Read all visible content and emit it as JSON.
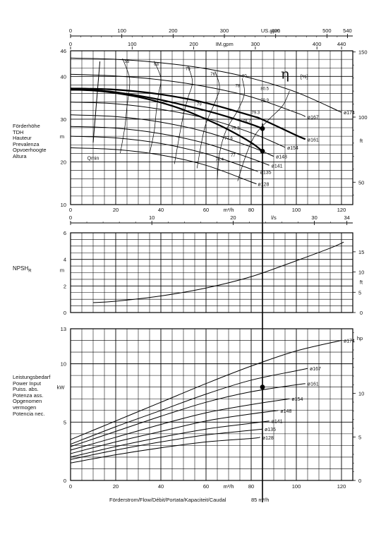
{
  "left_labels": {
    "head": [
      "Förderhöhe",
      "TDH",
      "Hauteur",
      "Prevalenza",
      "Opvoerhoogte",
      "Altura"
    ],
    "npsh": "NPSH",
    "npsh_sub": "R",
    "power": [
      "Leistungsbedarf",
      "Power Input",
      "Puiss. abs.",
      "Potenza ass.",
      "Opgenomen",
      "vermogen",
      "Potencia nec."
    ]
  },
  "footer": {
    "flow_label": "Förderstrom/Flow/Débit/Portata/Kapaciteit/Caudal",
    "duty_label": "85 m³/h"
  },
  "chart_data": {
    "type": "line",
    "flow_axis": {
      "unit": "m³/h",
      "range": [
        0,
        125
      ],
      "ticks": [
        0,
        20,
        40,
        60,
        80,
        100,
        120
      ]
    },
    "top_scales": {
      "us_gpm": {
        "unit": "US.gpm",
        "ticks": [
          0,
          100,
          200,
          300,
          400,
          500,
          540
        ]
      },
      "im_gpm": {
        "unit": "IM.gpm",
        "ticks": [
          0,
          100,
          200,
          300,
          400,
          440
        ]
      }
    },
    "ls_scale": {
      "unit": "l/s",
      "ticks": [
        0,
        10,
        20,
        30,
        34
      ]
    },
    "duty_point": {
      "flow": 85
    },
    "head_chart": {
      "y_unit": "m",
      "ylim": [
        10,
        46
      ],
      "yticks": [
        10,
        20,
        30,
        40,
        46
      ],
      "y2_unit": "ft",
      "y2ticks": [
        50,
        100,
        150
      ],
      "series": [
        {
          "name": "ø174",
          "points": [
            [
              0,
              44.3
            ],
            [
              20,
              44
            ],
            [
              40,
              43.2
            ],
            [
              60,
              41.8
            ],
            [
              80,
              39.6
            ],
            [
              100,
              36.3
            ],
            [
              120,
              31.6
            ]
          ]
        },
        {
          "name": "ø167",
          "points": [
            [
              0,
              40.5
            ],
            [
              20,
              40.1
            ],
            [
              40,
              39.2
            ],
            [
              60,
              37.6
            ],
            [
              80,
              35.2
            ],
            [
              100,
              31.5
            ],
            [
              104,
              30.6
            ]
          ]
        },
        {
          "name": "ø161",
          "points": [
            [
              0,
              37.2
            ],
            [
              20,
              36.9
            ],
            [
              40,
              35.8
            ],
            [
              60,
              33.8
            ],
            [
              80,
              30.8
            ],
            [
              85,
              29.9
            ],
            [
              100,
              26.2
            ],
            [
              104,
              25.3
            ]
          ]
        },
        {
          "name": "ø154",
          "points": [
            [
              0,
              34
            ],
            [
              20,
              33.6
            ],
            [
              40,
              32.3
            ],
            [
              60,
              30.2
            ],
            [
              80,
              26.8
            ],
            [
              95,
              23.4
            ]
          ]
        },
        {
          "name": "ø148",
          "points": [
            [
              0,
              31
            ],
            [
              20,
              30.6
            ],
            [
              40,
              29.3
            ],
            [
              60,
              27
            ],
            [
              80,
              23.5
            ],
            [
              90,
              21.3
            ]
          ]
        },
        {
          "name": "ø141",
          "points": [
            [
              0,
              28.3
            ],
            [
              20,
              27.9
            ],
            [
              40,
              26.6
            ],
            [
              60,
              24.3
            ],
            [
              80,
              20.8
            ],
            [
              88,
              19.2
            ]
          ]
        },
        {
          "name": "ø135",
          "points": [
            [
              0,
              26
            ],
            [
              20,
              25.6
            ],
            [
              40,
              24.3
            ],
            [
              60,
              21.9
            ],
            [
              80,
              18.3
            ],
            [
              83,
              17.7
            ]
          ]
        },
        {
          "name": "ø128",
          "points": [
            [
              0,
              23.3
            ],
            [
              20,
              22.9
            ],
            [
              40,
              21.6
            ],
            [
              60,
              19.2
            ],
            [
              80,
              15.3
            ],
            [
              82,
              14.9
            ]
          ]
        }
      ],
      "highlight": {
        "flow": [
          0,
          10,
          20,
          30,
          40,
          50,
          60,
          70,
          80,
          85
        ],
        "upper": [
          36.9,
          36.8,
          36.3,
          35.5,
          34.5,
          33.3,
          32,
          30.5,
          28.8,
          27.8
        ],
        "lower": [
          36.9,
          36.7,
          36.1,
          35.2,
          33.9,
          32.2,
          30,
          27.5,
          24.5,
          22.5
        ]
      },
      "efficiency": {
        "symbol": "η",
        "unit": "[%]",
        "labels": [
          "55",
          "68",
          "75",
          "76",
          "78",
          "79",
          "79.3",
          "79.9",
          "80",
          "80.5",
          "78.7",
          "77.6",
          "77",
          "76.4",
          "76.2"
        ]
      },
      "qmin_label": "Qmin"
    },
    "npsh_chart": {
      "y_unit": "m",
      "ylim": [
        0,
        6
      ],
      "yticks": [
        0,
        2,
        4,
        6
      ],
      "y2_unit": "ft",
      "y2ticks": [
        0,
        5,
        10,
        15
      ],
      "series": [
        {
          "points": [
            [
              10,
              0.75
            ],
            [
              20,
              0.85
            ],
            [
              40,
              1.25
            ],
            [
              60,
              1.85
            ],
            [
              80,
              2.7
            ],
            [
              100,
              3.9
            ],
            [
              115,
              4.85
            ],
            [
              121,
              5.3
            ]
          ]
        }
      ]
    },
    "power_chart": {
      "y_unit": "kW",
      "ylim": [
        0,
        13
      ],
      "yticks": [
        0,
        5,
        10,
        13
      ],
      "y2_unit": "hp",
      "y2ticks": [
        0,
        5,
        10
      ],
      "series": [
        {
          "name": "ø174",
          "points": [
            [
              0,
              3.5
            ],
            [
              20,
              5.1
            ],
            [
              40,
              6.7
            ],
            [
              60,
              8.3
            ],
            [
              80,
              9.8
            ],
            [
              100,
              11.1
            ],
            [
              120,
              12
            ]
          ]
        },
        {
          "name": "ø167",
          "points": [
            [
              0,
              3.1
            ],
            [
              20,
              4.6
            ],
            [
              40,
              6
            ],
            [
              60,
              7.4
            ],
            [
              80,
              8.6
            ],
            [
              100,
              9.4
            ],
            [
              105,
              9.6
            ]
          ]
        },
        {
          "name": "ø161",
          "points": [
            [
              0,
              2.9
            ],
            [
              20,
              4.2
            ],
            [
              40,
              5.5
            ],
            [
              60,
              6.7
            ],
            [
              80,
              7.6
            ],
            [
              100,
              8.2
            ],
            [
              104,
              8.3
            ]
          ]
        },
        {
          "name": "ø154",
          "points": [
            [
              0,
              2.6
            ],
            [
              20,
              3.7
            ],
            [
              40,
              4.8
            ],
            [
              60,
              5.8
            ],
            [
              80,
              6.5
            ],
            [
              97,
              7
            ]
          ]
        },
        {
          "name": "ø148",
          "points": [
            [
              0,
              2.3
            ],
            [
              20,
              3.3
            ],
            [
              40,
              4.2
            ],
            [
              60,
              5.1
            ],
            [
              80,
              5.7
            ],
            [
              92,
              6
            ]
          ]
        },
        {
          "name": "ø141",
          "points": [
            [
              0,
              2
            ],
            [
              20,
              2.9
            ],
            [
              40,
              3.7
            ],
            [
              60,
              4.4
            ],
            [
              80,
              4.9
            ],
            [
              88,
              5.1
            ]
          ]
        },
        {
          "name": "ø135",
          "points": [
            [
              0,
              1.8
            ],
            [
              20,
              2.6
            ],
            [
              40,
              3.3
            ],
            [
              60,
              3.9
            ],
            [
              80,
              4.3
            ],
            [
              85,
              4.4
            ]
          ]
        },
        {
          "name": "ø128",
          "points": [
            [
              0,
              1.5
            ],
            [
              20,
              2.2
            ],
            [
              40,
              2.8
            ],
            [
              60,
              3.3
            ],
            [
              80,
              3.6
            ],
            [
              84,
              3.7
            ]
          ]
        }
      ],
      "duty_power": 8
    }
  }
}
